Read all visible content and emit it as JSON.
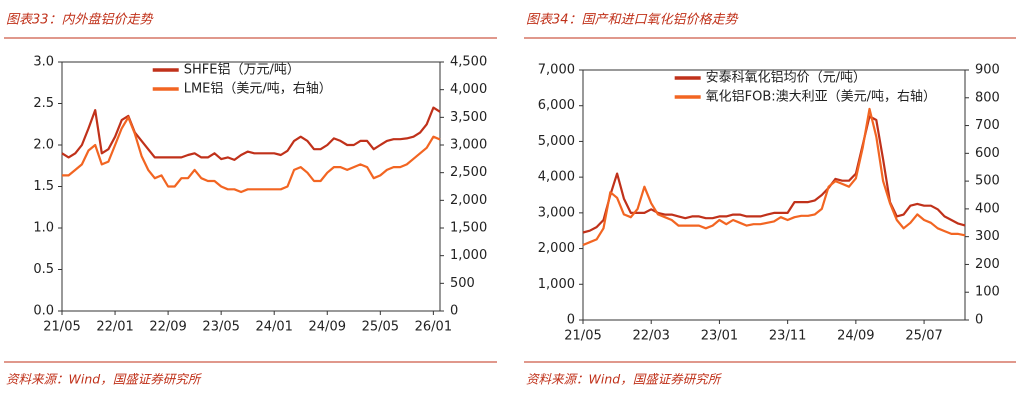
{
  "chart_data": [
    {
      "type": "line",
      "title": "图表33：内外盘铝价走势",
      "source": "资料来源：Wind，国盛证券研究所",
      "categories": [
        "21/05",
        "21/06",
        "21/07",
        "21/08",
        "21/09",
        "21/10",
        "21/11",
        "21/12",
        "22/01",
        "22/02",
        "22/03",
        "22/04",
        "22/05",
        "22/06",
        "22/07",
        "22/08",
        "22/09",
        "22/10",
        "22/11",
        "22/12",
        "23/01",
        "23/02",
        "23/03",
        "23/04",
        "23/05",
        "23/06",
        "23/07",
        "23/08",
        "23/09",
        "23/10",
        "23/11",
        "23/12",
        "24/01",
        "24/02",
        "24/03",
        "24/04",
        "24/05",
        "24/06",
        "24/07",
        "24/08",
        "24/09",
        "24/10",
        "24/11",
        "24/12",
        "25/01",
        "25/02",
        "25/03",
        "25/04",
        "25/05",
        "25/06",
        "25/07",
        "25/08",
        "25/09",
        "25/10",
        "25/11",
        "25/12",
        "26/01",
        "26/02"
      ],
      "xticks": [
        "21/05",
        "22/01",
        "22/09",
        "23/05",
        "24/01",
        "24/09",
        "25/05",
        "26/01"
      ],
      "series": [
        {
          "name": "SHFE铝（万元/吨）",
          "color": "#c0311a",
          "values": [
            1.9,
            1.85,
            1.9,
            2.0,
            2.2,
            2.42,
            1.9,
            1.95,
            2.1,
            2.3,
            2.35,
            2.15,
            2.05,
            1.95,
            1.85,
            1.85,
            1.85,
            1.85,
            1.85,
            1.88,
            1.9,
            1.85,
            1.85,
            1.9,
            1.83,
            1.85,
            1.82,
            1.88,
            1.92,
            1.9,
            1.9,
            1.9,
            1.9,
            1.88,
            1.93,
            2.05,
            2.1,
            2.05,
            1.95,
            1.95,
            2.0,
            2.08,
            2.05,
            2.0,
            2.0,
            2.05,
            2.05,
            1.95,
            2.0,
            2.05,
            2.07,
            2.07,
            2.08,
            2.1,
            2.15,
            2.25,
            2.45,
            2.4
          ]
        },
        {
          "name": "LME铝（美元/吨，右轴）",
          "color": "#f26522",
          "axis": "y2",
          "values": [
            2450,
            2450,
            2550,
            2650,
            2900,
            3000,
            2650,
            2700,
            3000,
            3300,
            3500,
            3200,
            2800,
            2550,
            2400,
            2450,
            2250,
            2250,
            2400,
            2400,
            2550,
            2400,
            2350,
            2350,
            2250,
            2200,
            2200,
            2150,
            2200,
            2200,
            2200,
            2200,
            2200,
            2200,
            2250,
            2550,
            2600,
            2500,
            2350,
            2350,
            2500,
            2600,
            2600,
            2550,
            2600,
            2650,
            2600,
            2400,
            2450,
            2550,
            2600,
            2600,
            2650,
            2750,
            2850,
            2950,
            3150,
            3100
          ]
        }
      ],
      "ylim": [
        0,
        3
      ],
      "yticks": [
        {
          "value": 0,
          "label": "0.0"
        },
        {
          "value": 0.5,
          "label": "0.5"
        },
        {
          "value": 1,
          "label": "1.0"
        },
        {
          "value": 1.5,
          "label": "1.5"
        },
        {
          "value": 2,
          "label": "2.0"
        },
        {
          "value": 2.5,
          "label": "2.5"
        },
        {
          "value": 3,
          "label": "3.0"
        }
      ],
      "y2lim": [
        0,
        4500
      ],
      "y2ticks": [
        0,
        500,
        {
          "value": 1000,
          "label": "1,000"
        },
        {
          "value": 1500,
          "label": "1,500"
        },
        {
          "value": 2000,
          "label": "2,000"
        },
        {
          "value": 2500,
          "label": "2,500"
        },
        {
          "value": 3000,
          "label": "3,000"
        },
        {
          "value": 3500,
          "label": "3,500"
        },
        {
          "value": 4000,
          "label": "4,000"
        },
        {
          "value": 4500,
          "label": "4,500"
        }
      ],
      "legend": "top"
    },
    {
      "type": "line",
      "title": "图表34：国产和进口氧化铝价格走势",
      "source": "资料来源：Wind，国盛证券研究所",
      "categories": [
        "21/05",
        "21/06",
        "21/07",
        "21/08",
        "21/09",
        "21/10",
        "21/11",
        "21/12",
        "22/01",
        "22/02",
        "22/03",
        "22/04",
        "22/05",
        "22/06",
        "22/07",
        "22/08",
        "22/09",
        "22/10",
        "22/11",
        "22/12",
        "23/01",
        "23/02",
        "23/03",
        "23/04",
        "23/05",
        "23/06",
        "23/07",
        "23/08",
        "23/09",
        "23/10",
        "23/11",
        "23/12",
        "24/01",
        "24/02",
        "24/03",
        "24/04",
        "24/05",
        "24/06",
        "24/07",
        "24/08",
        "24/09",
        "24/10",
        "24/11",
        "24/12",
        "25/01",
        "25/02",
        "25/03",
        "25/04",
        "25/05",
        "25/06",
        "25/07",
        "25/08",
        "25/09",
        "25/10",
        "25/11",
        "25/12",
        "26/01"
      ],
      "xticks": [
        "21/05",
        "22/03",
        "23/01",
        "23/11",
        "24/09",
        "25/07"
      ],
      "series": [
        {
          "name": "安泰科氧化铝均价（元/吨）",
          "color": "#c0311a",
          "values": [
            2450,
            2500,
            2600,
            2800,
            3500,
            4100,
            3400,
            3000,
            3000,
            3000,
            3100,
            3000,
            2950,
            2950,
            2900,
            2850,
            2900,
            2900,
            2850,
            2850,
            2900,
            2900,
            2950,
            2950,
            2900,
            2900,
            2900,
            2950,
            3000,
            3000,
            3000,
            3300,
            3300,
            3300,
            3350,
            3500,
            3700,
            3950,
            3900,
            3900,
            4100,
            4900,
            5700,
            5600,
            4500,
            3300,
            2900,
            2950,
            3200,
            3250,
            3200,
            3200,
            3100,
            2900,
            2800,
            2700,
            2650
          ]
        },
        {
          "name": "氧化铝FOB:澳大利亚（美元/吨，右轴）",
          "color": "#f26522",
          "axis": "y2",
          "values": [
            270,
            280,
            290,
            330,
            460,
            440,
            380,
            370,
            400,
            480,
            420,
            380,
            370,
            360,
            340,
            340,
            340,
            340,
            330,
            340,
            360,
            345,
            360,
            350,
            340,
            345,
            345,
            350,
            355,
            370,
            360,
            370,
            375,
            375,
            380,
            400,
            480,
            500,
            490,
            480,
            510,
            620,
            760,
            660,
            500,
            420,
            360,
            330,
            350,
            380,
            360,
            350,
            330,
            320,
            310,
            310,
            305
          ]
        }
      ],
      "ylim": [
        0,
        7000
      ],
      "yticks": [
        0,
        {
          "value": 1000,
          "label": "1,000"
        },
        {
          "value": 2000,
          "label": "2,000"
        },
        {
          "value": 3000,
          "label": "3,000"
        },
        {
          "value": 4000,
          "label": "4,000"
        },
        {
          "value": 5000,
          "label": "5,000"
        },
        {
          "value": 6000,
          "label": "6,000"
        },
        {
          "value": 7000,
          "label": "7,000"
        }
      ],
      "y2lim": [
        0,
        900
      ],
      "y2ticks": [
        0,
        100,
        200,
        300,
        400,
        500,
        600,
        700,
        800,
        900
      ],
      "legend": "top"
    }
  ]
}
